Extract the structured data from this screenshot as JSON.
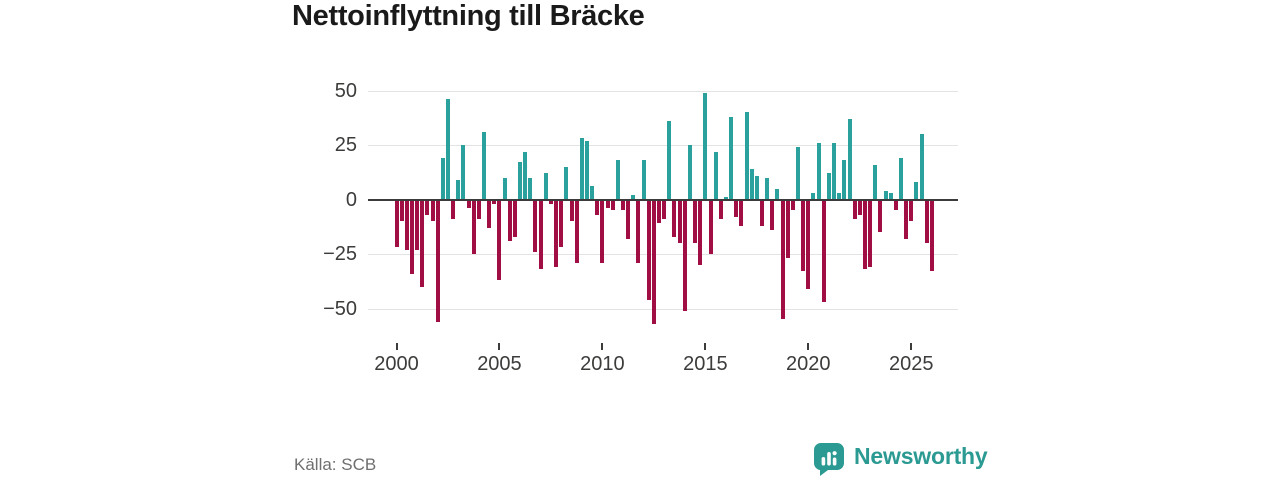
{
  "title": "Nettoinflyttning till Bräcke",
  "source": "Källa: SCB",
  "logo": {
    "text": "Newsworthy",
    "icon": "bar-chart-speech-bubble"
  },
  "colors": {
    "positive": "#2AA19C",
    "negative": "#A00E43",
    "grid": "#E3E3E3",
    "axis": "#3B3B3B",
    "brand": "#2B9A92",
    "title_text": "#1A1A1A",
    "muted_text": "#6F6F6F",
    "tick_text": "#3C3C3B"
  },
  "chart_data": {
    "type": "bar",
    "title": "Nettoinflyttning till Bräcke",
    "xlabel": "",
    "ylabel": "",
    "frequency": "quarterly",
    "x_range": "2000Q1–2026Q1",
    "start_year": 2000,
    "y_ticks": [
      50,
      25,
      0,
      -25,
      -50
    ],
    "x_ticks": [
      2000,
      2005,
      2010,
      2015,
      2020,
      2025
    ],
    "ylim": [
      -62,
      55
    ],
    "grid": true,
    "legend": "none",
    "positive_color_meaning": "net in-migration",
    "negative_color_meaning": "net out-migration",
    "values": [
      -22,
      -10,
      -23,
      -34,
      -23,
      -40,
      -7,
      -10,
      -56,
      19,
      46,
      -9,
      9,
      25,
      -4,
      -25,
      -9,
      31,
      -13,
      -2,
      -37,
      10,
      -19,
      -17,
      17,
      22,
      10,
      -24,
      -32,
      12,
      -2,
      -31,
      -22,
      15,
      -10,
      -29,
      28,
      27,
      6,
      -7,
      -29,
      -4,
      -5,
      18,
      -5,
      -18,
      2,
      -29,
      18,
      -46,
      -57,
      -11,
      -9,
      36,
      -17,
      -20,
      -51,
      25,
      -20,
      -30,
      49,
      -25,
      22,
      -9,
      1,
      38,
      -8,
      -12,
      40,
      14,
      11,
      -12,
      10,
      -14,
      5,
      -55,
      -27,
      -5,
      24,
      -33,
      -41,
      3,
      26,
      -47,
      12,
      26,
      3,
      18,
      37,
      -9,
      -7,
      -32,
      -31,
      16,
      -15,
      4,
      3,
      -5,
      19,
      -18,
      -10,
      8,
      30,
      -20,
      -33
    ]
  }
}
